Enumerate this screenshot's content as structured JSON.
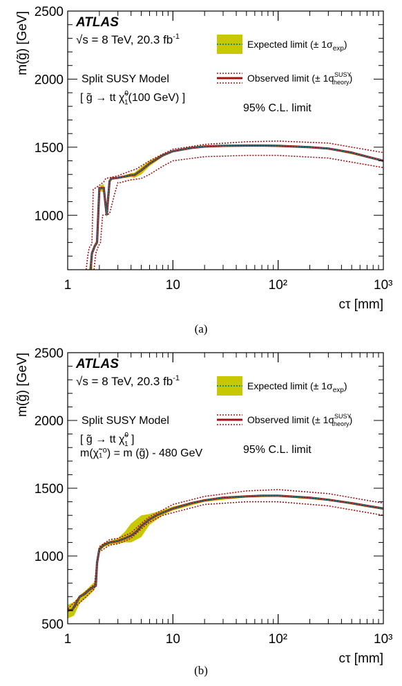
{
  "figure": {
    "captions": [
      "(a)",
      "(b)"
    ]
  },
  "legend": {
    "expected": "Expected limit (± 1σ",
    "expected_sub": "exp",
    "observed": "Observed limit (± 1σ",
    "observed_sup": "SUSY",
    "observed_sub": "theory",
    "close_paren": ")"
  },
  "colors": {
    "band": "#c8c800",
    "expected_line": "#0f8f7f",
    "observed_line": "#a01010",
    "observed_center": "#4a4a66",
    "axis": "#000000"
  },
  "chart_data": [
    {
      "type": "line",
      "experiment": "ATLAS",
      "energy_label": "√s = 8 TeV, 20.3 fb",
      "energy_sup": "-1",
      "model_label": "Split SUSY Model",
      "decay_label": "[ g̃ → tt χ̃",
      "decay_sup": "0",
      "decay_sub": "1",
      "decay_tail": "(100 GeV) ]",
      "mass_relation": "",
      "cl_label": "95% C.L. limit",
      "xlabel": "cτ [mm]",
      "ylabel": "m(g̃) [GeV]",
      "xscale": "log",
      "xlim": [
        1,
        1000
      ],
      "ylim": [
        600,
        2500
      ],
      "xticks": [
        "1",
        "10",
        "10²",
        "10³"
      ],
      "yticks": [
        1000,
        1500,
        2000,
        2500
      ],
      "series": [
        {
          "name": "Expected limit",
          "x": [
            1.65,
            1.7,
            1.8,
            1.9,
            2.0,
            2.2,
            2.35,
            2.5,
            2.6,
            3.0,
            3.5,
            4.0,
            4.3,
            5.0,
            6.0,
            8.0,
            10,
            15,
            20,
            30,
            50,
            70,
            100,
            200,
            300,
            500,
            700,
            1000
          ],
          "y": [
            600,
            720,
            770,
            800,
            1200,
            1200,
            1000,
            1250,
            1270,
            1275,
            1285,
            1295,
            1295,
            1330,
            1380,
            1440,
            1470,
            1495,
            1505,
            1510,
            1512,
            1512,
            1510,
            1500,
            1490,
            1460,
            1430,
            1400
          ],
          "band": [
            [
              1.6,
              1.7,
              1.8,
              1.9,
              1.95,
              2.2,
              2.35,
              2.5,
              2.6,
              3.0,
              3.5,
              4.0,
              4.3,
              5.0,
              6.0,
              8.0,
              10,
              20,
              50,
              100,
              300,
              1000,
              1000,
              300,
              100,
              50,
              20,
              10,
              8.0,
              6.0,
              5.0,
              4.3,
              4.0,
              3.5,
              3.0,
              2.6,
              2.5,
              2.35,
              2.2,
              2.05,
              1.9,
              1.8,
              1.7,
              1.72
            ],
            [
              600,
              730,
              790,
              820,
              1180,
              1170,
              980,
              1235,
              1260,
              1268,
              1275,
              1280,
              1275,
              1300,
              1360,
              1430,
              1465,
              1500,
              1508,
              1506,
              1486,
              1397,
              1403,
              1494,
              1514,
              1516,
              1510,
              1475,
              1450,
              1400,
              1355,
              1312,
              1310,
              1295,
              1282,
              1278,
              1265,
              1020,
              1230,
              1220,
              810,
              750,
              700,
              600
            ]
          ]
        },
        {
          "name": "Observed limit",
          "x": [
            1.65,
            1.7,
            1.8,
            1.9,
            2.0,
            2.2,
            2.35,
            2.5,
            2.6,
            3.0,
            3.5,
            4.0,
            4.3,
            5.0,
            6.0,
            8.0,
            10,
            15,
            20,
            30,
            50,
            70,
            100,
            200,
            300,
            500,
            700,
            1000
          ],
          "y": [
            600,
            720,
            770,
            800,
            1200,
            1200,
            1000,
            1250,
            1270,
            1275,
            1285,
            1295,
            1295,
            1330,
            1380,
            1440,
            1470,
            1495,
            1505,
            1510,
            1512,
            1512,
            1510,
            1500,
            1490,
            1460,
            1430,
            1400
          ],
          "upper": {
            "x": [
              1.5,
              1.55,
              1.6,
              1.7,
              1.75,
              2.0,
              2.2,
              2.3,
              3.0,
              3.5,
              4.5,
              6.0,
              8.0,
              10,
              20,
              50,
              100,
              300,
              1000
            ],
            "y": [
              600,
              700,
              760,
              790,
              1190,
              1220,
              1245,
              1270,
              1290,
              1310,
              1340,
              1400,
              1450,
              1485,
              1520,
              1540,
              1545,
              1530,
              1460
            ]
          },
          "lower": {
            "x": [
              1.78,
              1.85,
              1.95,
              2.05,
              2.15,
              2.5,
              2.8,
              3.0,
              3.2,
              3.5,
              4.0,
              5.0,
              6.0,
              8.0,
              10,
              20,
              50,
              100,
              300,
              1000
            ],
            "y": [
              600,
              720,
              770,
              800,
              1000,
              1010,
              1160,
              1240,
              1240,
              1250,
              1260,
              1270,
              1300,
              1360,
              1400,
              1430,
              1440,
              1440,
              1420,
              1350
            ]
          }
        }
      ]
    },
    {
      "type": "line",
      "experiment": "ATLAS",
      "energy_label": "√s = 8 TeV, 20.3 fb",
      "energy_sup": "-1",
      "model_label": "Split SUSY Model",
      "decay_label": "[ g̃ → tt χ̃",
      "decay_sup": "0",
      "decay_sub": "1",
      "decay_tail": " ]",
      "mass_relation": "m(χ̃₁⁰) = m (g̃) - 480 GeV",
      "cl_label": "95% C.L. limit",
      "xlabel": "cτ [mm]",
      "ylabel": "m(g̃) [GeV]",
      "xscale": "log",
      "xlim": [
        1,
        1000
      ],
      "ylim": [
        500,
        2500
      ],
      "xticks": [
        "1",
        "10",
        "10²",
        "10³"
      ],
      "yticks": [
        500,
        1000,
        1500,
        2000,
        2500
      ],
      "series": [
        {
          "name": "Expected limit",
          "x": [
            1.0,
            1.1,
            1.2,
            1.3,
            1.45,
            1.6,
            1.75,
            1.85,
            1.9,
            2.0,
            2.2,
            2.5,
            3.0,
            3.5,
            4.0,
            4.5,
            5.0,
            6.0,
            7.0,
            8.0,
            10,
            15,
            20,
            30,
            50,
            70,
            100,
            200,
            300,
            500,
            700,
            1000
          ],
          "y": [
            600,
            600,
            650,
            700,
            720,
            750,
            770,
            780,
            950,
            1050,
            1080,
            1100,
            1110,
            1130,
            1150,
            1180,
            1220,
            1270,
            1300,
            1320,
            1350,
            1390,
            1410,
            1430,
            1440,
            1445,
            1445,
            1430,
            1415,
            1390,
            1370,
            1350
          ],
          "band": [
            [
              1.0,
              1.15,
              1.3,
              1.5,
              1.8,
              1.9,
              2.0,
              2.2,
              2.6,
              3.0,
              3.5,
              4.0,
              5.0,
              6.0,
              8.0,
              10,
              20,
              50,
              100,
              300,
              1000,
              1000,
              300,
              100,
              50,
              20,
              10,
              8.0,
              6.0,
              5.0,
              4.0,
              3.5,
              3.0,
              2.6,
              2.2,
              2.0,
              1.9,
              1.8,
              1.5,
              1.3,
              1.15,
              1.0
            ],
            [
              540,
              560,
              650,
              690,
              750,
              900,
              1030,
              1065,
              1085,
              1090,
              1100,
              1100,
              1140,
              1230,
              1300,
              1335,
              1400,
              1432,
              1438,
              1408,
              1342,
              1358,
              1422,
              1452,
              1448,
              1420,
              1365,
              1340,
              1310,
              1300,
              1240,
              1180,
              1130,
              1115,
              1095,
              1070,
              1000,
              810,
              750,
              710,
              660,
              640
            ]
          ]
        },
        {
          "name": "Observed limit",
          "x": [
            1.0,
            1.1,
            1.2,
            1.3,
            1.45,
            1.6,
            1.75,
            1.85,
            1.9,
            2.0,
            2.2,
            2.5,
            3.0,
            3.5,
            4.0,
            4.5,
            5.0,
            6.0,
            7.0,
            8.0,
            10,
            15,
            20,
            30,
            50,
            70,
            100,
            200,
            300,
            500,
            700,
            1000
          ],
          "y": [
            600,
            600,
            650,
            700,
            720,
            750,
            770,
            780,
            950,
            1050,
            1080,
            1100,
            1110,
            1130,
            1150,
            1180,
            1220,
            1270,
            1300,
            1320,
            1350,
            1390,
            1410,
            1430,
            1440,
            1445,
            1445,
            1430,
            1415,
            1390,
            1370,
            1350
          ],
          "upper": {
            "x": [
              1.0,
              1.2,
              1.5,
              1.8,
              1.9,
              2.0,
              2.5,
              3.0,
              4.0,
              5.0,
              6.0,
              8.0,
              10,
              20,
              50,
              100,
              300,
              1000
            ],
            "y": [
              610,
              670,
              740,
              790,
              970,
              1070,
              1120,
              1130,
              1170,
              1240,
              1290,
              1340,
              1380,
              1440,
              1480,
              1490,
              1460,
              1390
            ]
          },
          "lower": {
            "x": [
              1.0,
              1.2,
              1.5,
              1.8,
              1.9,
              2.0,
              2.5,
              3.0,
              4.0,
              5.0,
              6.0,
              8.0,
              10,
              20,
              50,
              100,
              300,
              1000
            ],
            "y": [
              590,
              630,
              700,
              760,
              930,
              1030,
              1080,
              1090,
              1130,
              1200,
              1250,
              1300,
              1320,
              1380,
              1400,
              1400,
              1370,
              1300
            ]
          }
        }
      ]
    }
  ]
}
